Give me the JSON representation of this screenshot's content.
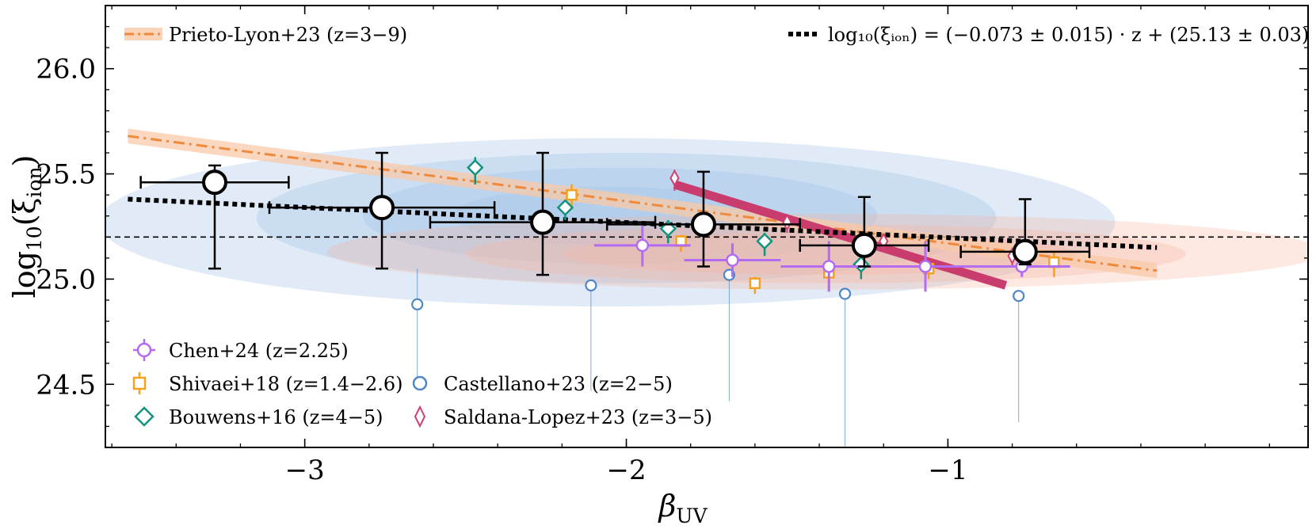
{
  "chart_data": {
    "type": "scatter",
    "xlabel": "β",
    "xlabel_sub": "UV",
    "ylabel": "log",
    "ylabel_sub": "10",
    "ylabel_var": "(ξ",
    "ylabel_var_sub": "ion",
    "ylabel_close": ")",
    "xlim": [
      -3.62,
      0.12
    ],
    "ylim": [
      24.2,
      26.3
    ],
    "x_ticks": [
      -3,
      -2,
      -1
    ],
    "x_tick_labels": [
      "−3",
      "−2",
      "−1"
    ],
    "y_ticks": [
      24.5,
      25.0,
      25.5,
      26.0
    ],
    "y_tick_labels": [
      "24.5",
      "25.0",
      "25.5",
      "26.0"
    ],
    "reference_line_y": 25.2,
    "fit_line": {
      "label": "log₁₀(ξᵢₒₙ) = (−0.073 ± 0.015) · z + (25.13 ± 0.03)",
      "x": [
        -3.55,
        -0.35
      ],
      "y": [
        25.38,
        25.15
      ],
      "color": "#000000"
    },
    "prieto_lyon": {
      "label": "Prieto-Lyon+23 (z=3−9)",
      "x": [
        -3.55,
        -0.35
      ],
      "y": [
        25.68,
        25.04
      ],
      "band": 0.035,
      "color": "#ef8a3c",
      "band_color": "#f8c9a8"
    },
    "magenta_fit": {
      "x": [
        -1.85,
        -0.82
      ],
      "y": [
        25.45,
        24.97
      ],
      "color": "#c83c6e"
    },
    "binned": {
      "name": "binned",
      "x": [
        -3.28,
        -2.76,
        -2.26,
        -1.76,
        -1.26,
        -0.76
      ],
      "y": [
        25.46,
        25.34,
        25.27,
        25.26,
        25.16,
        25.13
      ],
      "xerr": [
        0.23,
        0.35,
        0.35,
        0.3,
        0.2,
        0.2
      ],
      "yerr_up": [
        0.08,
        0.26,
        0.33,
        0.25,
        0.23,
        0.25
      ],
      "yerr_down": [
        0.41,
        0.29,
        0.25,
        0.2,
        0.1,
        0.06
      ]
    },
    "chen24": {
      "label": "Chen+24 (z=2.25)",
      "color": "#b36bf2",
      "x": [
        -1.95,
        -1.67,
        -1.37,
        -1.07,
        -0.77
      ],
      "y": [
        25.16,
        25.09,
        25.06,
        25.06,
        25.06
      ],
      "xerr": [
        0.15,
        0.15,
        0.15,
        0.15,
        0.15
      ],
      "yerr": [
        0.1,
        0.08,
        0.12,
        0.12,
        0.05
      ]
    },
    "shivaei18": {
      "label": "Shivaei+18 (z=1.4−2.6)",
      "color": "#f5a020",
      "x": [
        -2.17,
        -1.83,
        -1.6,
        -1.37,
        -1.06,
        -0.67
      ],
      "y": [
        25.4,
        25.18,
        24.98,
        25.03,
        25.05,
        25.08
      ],
      "yerr": [
        0.05,
        0.03,
        0.03,
        0.03,
        0.03,
        0.05
      ]
    },
    "bouwens16": {
      "label": "Bouwens+16 (z=4−5)",
      "color": "#13937e",
      "x": [
        -2.47,
        -2.19,
        -1.87,
        -1.57,
        -1.27
      ],
      "y": [
        25.53,
        25.34,
        25.24,
        25.18,
        25.07
      ],
      "yerr": [
        0.05,
        0.03,
        0.04,
        0.04,
        0.04
      ]
    },
    "castellano23": {
      "label": "Castellano+23 (z=2−5)",
      "color": "#4f86c6",
      "x": [
        -2.65,
        -2.11,
        -1.68,
        -1.32,
        -0.78
      ],
      "y": [
        24.88,
        24.97,
        25.02,
        24.93,
        24.92
      ],
      "yerr_up": [
        0.17,
        0.0,
        0.0,
        0.0,
        0.0
      ],
      "yerr_down": [
        0.35,
        0.5,
        0.6,
        0.8,
        0.6
      ]
    },
    "saldana23": {
      "label": "Saldana-Lopez+23 (z=3−5)",
      "color": "#d0406f",
      "x": [
        -1.85,
        -1.5,
        -1.2,
        -0.8
      ],
      "y": [
        25.48,
        25.27,
        25.18,
        25.11
      ],
      "yerr": [
        0.04,
        0.03,
        0.03,
        0.03
      ]
    },
    "blue_contours": [
      {
        "cx": -2.06,
        "cy": 25.27,
        "rx": 1.58,
        "ry": 0.4,
        "opacity": 0.32
      },
      {
        "cx": -2.0,
        "cy": 25.29,
        "rx": 1.15,
        "ry": 0.31,
        "opacity": 0.32
      },
      {
        "cx": -2.02,
        "cy": 25.3,
        "rx": 0.8,
        "ry": 0.23,
        "opacity": 0.32
      },
      {
        "cx": -2.06,
        "cy": 25.3,
        "rx": 0.48,
        "ry": 0.14,
        "opacity": 0.32
      }
    ],
    "red_contours": [
      {
        "cx": -1.38,
        "cy": 25.13,
        "rx": 1.55,
        "ry": 0.18,
        "opacity": 0.3
      },
      {
        "cx": -1.38,
        "cy": 25.12,
        "rx": 1.12,
        "ry": 0.14,
        "opacity": 0.3
      },
      {
        "cx": -1.4,
        "cy": 25.12,
        "rx": 0.8,
        "ry": 0.1,
        "opacity": 0.3
      }
    ]
  }
}
